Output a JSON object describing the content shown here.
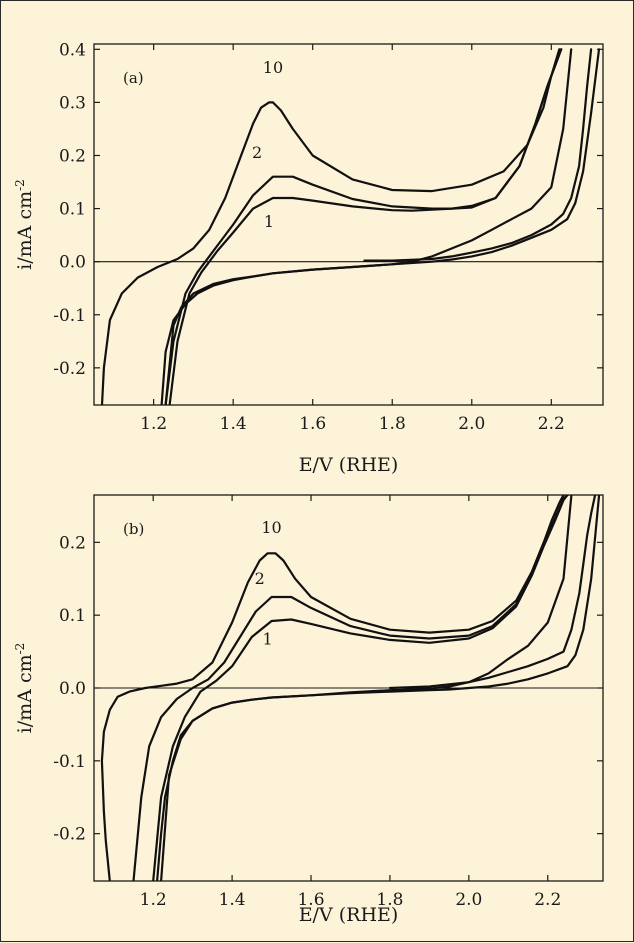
{
  "chart_data": [
    {
      "type": "line",
      "panel_label": "(a)",
      "xlabel": "E/V (RHE)",
      "ylabel": "i/mA cm",
      "ylabel_sup": "-2",
      "xlim": [
        1.05,
        2.33
      ],
      "ylim": [
        -0.27,
        0.41
      ],
      "xticks": [
        "1.2",
        "1.4",
        "1.6",
        "1.8",
        "2.0",
        "2.2"
      ],
      "yticks": [
        "0.4",
        "0.3",
        "0.2",
        "0.1",
        "0.0",
        "-0.1",
        "-0.2"
      ],
      "curve_labels": [
        {
          "text": "10",
          "x": 1.5,
          "y": 0.355
        },
        {
          "text": "2",
          "x": 1.46,
          "y": 0.195
        },
        {
          "text": "1",
          "x": 1.49,
          "y": 0.065
        }
      ],
      "series": [
        {
          "x": [
            1.07,
            1.075,
            1.09,
            1.12,
            1.16,
            1.21,
            1.26,
            1.3,
            1.34,
            1.38,
            1.42,
            1.45,
            1.47,
            1.49,
            1.5,
            1.52,
            1.55,
            1.6,
            1.7,
            1.8,
            1.9,
            2.0,
            2.08,
            2.14,
            2.18,
            2.2,
            2.22
          ],
          "y": [
            -0.27,
            -0.2,
            -0.11,
            -0.06,
            -0.03,
            -0.01,
            0.005,
            0.025,
            0.06,
            0.12,
            0.2,
            0.26,
            0.29,
            0.3,
            0.3,
            0.285,
            0.25,
            0.2,
            0.155,
            0.135,
            0.133,
            0.145,
            0.17,
            0.22,
            0.29,
            0.35,
            0.4
          ]
        },
        {
          "x": [
            1.23,
            1.25,
            1.28,
            1.31,
            1.35,
            1.4,
            1.45,
            1.5,
            1.55,
            1.6,
            1.7,
            1.8,
            1.9,
            1.95,
            2.0,
            2.06,
            2.12,
            2.16,
            2.19,
            2.21,
            2.225
          ],
          "y": [
            -0.27,
            -0.15,
            -0.06,
            -0.02,
            0.02,
            0.07,
            0.125,
            0.16,
            0.16,
            0.145,
            0.118,
            0.104,
            0.1,
            0.1,
            0.105,
            0.12,
            0.18,
            0.26,
            0.33,
            0.37,
            0.4
          ]
        },
        {
          "x": [
            1.24,
            1.26,
            1.29,
            1.32,
            1.36,
            1.4,
            1.45,
            1.5,
            1.55,
            1.6,
            1.7,
            1.8,
            1.85,
            1.9,
            1.95,
            2.0,
            2.06,
            2.12,
            2.16,
            2.19,
            2.21,
            2.225
          ],
          "y": [
            -0.27,
            -0.15,
            -0.06,
            -0.02,
            0.02,
            0.055,
            0.1,
            0.12,
            0.12,
            0.115,
            0.104,
            0.097,
            0.096,
            0.098,
            0.1,
            0.102,
            0.12,
            0.18,
            0.26,
            0.33,
            0.37,
            0.4
          ]
        },
        {
          "x": [
            2.25,
            2.23,
            2.2,
            2.15,
            2.1,
            2.05,
            2.0,
            1.95,
            1.9,
            1.85,
            1.8,
            1.7,
            1.6,
            1.5,
            1.45,
            1.4,
            1.35,
            1.31,
            1.28,
            1.25,
            1.23,
            1.22
          ],
          "y": [
            0.4,
            0.25,
            0.14,
            0.1,
            0.08,
            0.06,
            0.04,
            0.025,
            0.01,
            0.0,
            -0.005,
            -0.01,
            -0.015,
            -0.022,
            -0.028,
            -0.035,
            -0.045,
            -0.06,
            -0.08,
            -0.11,
            -0.17,
            -0.27
          ]
        },
        {
          "x": [
            2.32,
            2.3,
            2.28,
            2.26,
            2.24,
            2.2,
            2.15,
            2.1,
            2.05,
            2.0,
            1.95,
            1.9,
            1.8,
            1.7,
            1.6,
            1.5,
            1.45,
            1.4,
            1.35,
            1.3,
            1.27,
            1.25,
            1.23
          ],
          "y": [
            0.4,
            0.28,
            0.17,
            0.11,
            0.08,
            0.06,
            0.045,
            0.03,
            0.018,
            0.01,
            0.004,
            0.0,
            -0.005,
            -0.01,
            -0.015,
            -0.022,
            -0.028,
            -0.033,
            -0.042,
            -0.06,
            -0.085,
            -0.12,
            -0.27
          ]
        },
        {
          "x": [
            1.73,
            1.8,
            1.9,
            1.95,
            2.0,
            2.05,
            2.1,
            2.15,
            2.2,
            2.23,
            2.25,
            2.27,
            2.28,
            2.29,
            2.3
          ],
          "y": [
            0.002,
            0.002,
            0.005,
            0.01,
            0.017,
            0.025,
            0.035,
            0.05,
            0.07,
            0.09,
            0.12,
            0.18,
            0.25,
            0.33,
            0.4
          ]
        }
      ]
    },
    {
      "type": "line",
      "panel_label": "(b)",
      "xlabel": "E/V (RHE)",
      "ylabel": "i/mA cm",
      "ylabel_sup": "-2",
      "xlim": [
        1.05,
        2.34
      ],
      "ylim": [
        -0.265,
        0.265
      ],
      "xticks": [
        "1.2",
        "1.4",
        "1.6",
        "1.8",
        "2.0",
        "2.2"
      ],
      "yticks": [
        "0.2",
        "0.1",
        "0.0",
        "-0.1",
        "-0.2"
      ],
      "curve_labels": [
        {
          "text": "10",
          "x": 1.5,
          "y": 0.213
        },
        {
          "text": "2",
          "x": 1.47,
          "y": 0.143
        },
        {
          "text": "1",
          "x": 1.49,
          "y": 0.06
        }
      ],
      "series": [
        {
          "x": [
            1.09,
            1.08,
            1.075,
            1.07,
            1.075,
            1.09,
            1.11,
            1.14,
            1.18,
            1.22,
            1.26,
            1.3,
            1.35,
            1.4,
            1.44,
            1.47,
            1.49,
            1.51,
            1.53,
            1.56,
            1.6,
            1.7,
            1.8,
            1.9,
            2.0,
            2.06,
            2.12,
            2.16,
            2.19,
            2.21,
            2.23,
            2.24
          ],
          "y": [
            -0.265,
            -0.21,
            -0.17,
            -0.1,
            -0.06,
            -0.03,
            -0.012,
            -0.005,
            0.0,
            0.003,
            0.006,
            0.012,
            0.035,
            0.09,
            0.145,
            0.175,
            0.185,
            0.185,
            0.175,
            0.15,
            0.125,
            0.095,
            0.08,
            0.076,
            0.08,
            0.092,
            0.12,
            0.16,
            0.2,
            0.23,
            0.255,
            0.265
          ]
        },
        {
          "x": [
            1.15,
            1.17,
            1.19,
            1.22,
            1.26,
            1.3,
            1.34,
            1.38,
            1.42,
            1.46,
            1.5,
            1.55,
            1.6,
            1.7,
            1.8,
            1.9,
            2.0,
            2.06,
            2.12,
            2.16,
            2.19,
            2.22,
            2.24,
            2.25
          ],
          "y": [
            -0.265,
            -0.15,
            -0.08,
            -0.04,
            -0.015,
            0.0,
            0.012,
            0.035,
            0.07,
            0.105,
            0.125,
            0.125,
            0.11,
            0.085,
            0.072,
            0.068,
            0.072,
            0.085,
            0.115,
            0.16,
            0.2,
            0.235,
            0.26,
            0.265
          ]
        },
        {
          "x": [
            1.2,
            1.22,
            1.25,
            1.28,
            1.32,
            1.36,
            1.4,
            1.45,
            1.5,
            1.55,
            1.6,
            1.7,
            1.8,
            1.9,
            2.0,
            2.06,
            2.12,
            2.16,
            2.19,
            2.22,
            2.24,
            2.25
          ],
          "y": [
            -0.265,
            -0.15,
            -0.08,
            -0.04,
            -0.005,
            0.01,
            0.03,
            0.07,
            0.092,
            0.094,
            0.088,
            0.075,
            0.066,
            0.062,
            0.068,
            0.082,
            0.112,
            0.155,
            0.195,
            0.232,
            0.258,
            0.265
          ]
        },
        {
          "x": [
            2.26,
            2.24,
            2.2,
            2.15,
            2.1,
            2.05,
            2.0,
            1.95,
            1.9,
            1.8,
            1.7,
            1.6,
            1.5,
            1.45,
            1.4,
            1.35,
            1.3,
            1.27,
            1.25,
            1.23,
            1.22,
            1.21
          ],
          "y": [
            0.265,
            0.15,
            0.09,
            0.058,
            0.04,
            0.02,
            0.008,
            0.002,
            -0.001,
            -0.003,
            -0.006,
            -0.01,
            -0.013,
            -0.016,
            -0.02,
            -0.028,
            -0.045,
            -0.065,
            -0.1,
            -0.15,
            -0.2,
            -0.265
          ]
        },
        {
          "x": [
            2.33,
            2.31,
            2.29,
            2.27,
            2.25,
            2.2,
            2.15,
            2.1,
            2.05,
            2.0,
            1.95,
            1.9,
            1.8,
            1.7,
            1.6,
            1.5,
            1.45,
            1.4,
            1.35,
            1.3,
            1.27,
            1.24,
            1.22
          ],
          "y": [
            0.265,
            0.15,
            0.08,
            0.045,
            0.03,
            0.02,
            0.012,
            0.006,
            0.002,
            0.0,
            -0.002,
            -0.003,
            -0.005,
            -0.007,
            -0.01,
            -0.013,
            -0.016,
            -0.02,
            -0.028,
            -0.045,
            -0.07,
            -0.12,
            -0.265
          ]
        },
        {
          "x": [
            1.8,
            1.9,
            2.0,
            2.05,
            2.1,
            2.15,
            2.2,
            2.24,
            2.26,
            2.28,
            2.29,
            2.3,
            2.31,
            2.32
          ],
          "y": [
            0.0,
            0.002,
            0.008,
            0.014,
            0.022,
            0.03,
            0.04,
            0.05,
            0.08,
            0.13,
            0.17,
            0.21,
            0.24,
            0.265
          ]
        }
      ]
    }
  ]
}
